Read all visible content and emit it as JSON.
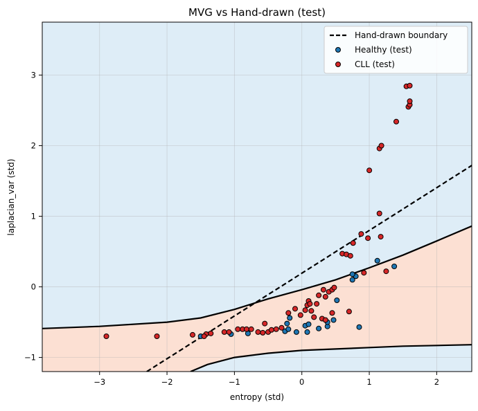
{
  "chart_data": {
    "type": "scatter",
    "title": "MVG vs Hand-drawn (test)",
    "xlabel": "entropy (std)",
    "ylabel": "laplacian_var (std)",
    "xlim": [
      -3.85,
      2.52
    ],
    "ylim": [
      -1.2,
      3.75
    ],
    "x_ticks": [
      -3,
      -2,
      -1,
      0,
      1,
      2
    ],
    "x_tick_labels": [
      "−3",
      "−2",
      "−1",
      "0",
      "1",
      "2"
    ],
    "y_ticks": [
      -1,
      0,
      1,
      2,
      3
    ],
    "y_tick_labels": [
      "−1",
      "0",
      "1",
      "2",
      "3"
    ],
    "grid": true,
    "legend_position": "top-right",
    "legend": [
      {
        "label": "Hand-drawn boundary",
        "marker": "dashed-line"
      },
      {
        "label": "Healthy (test)",
        "marker": "circle"
      },
      {
        "label": "CLL (test)",
        "marker": "circle"
      }
    ],
    "colors": {
      "healthy_region": "#deedf7",
      "cll_region": "#fce0d3",
      "healthy_points": "#1f77b4",
      "cll_points": "#d62728",
      "boundary": "#000000"
    },
    "hand_drawn_boundary": {
      "style": "dashed",
      "points": [
        [
          -2.3,
          -1.2
        ],
        [
          2.52,
          1.72
        ]
      ]
    },
    "mvg_boundary": {
      "style": "solid",
      "upper": [
        [
          -3.85,
          -0.59
        ],
        [
          -3.0,
          -0.56
        ],
        [
          -2.0,
          -0.5
        ],
        [
          -1.5,
          -0.44
        ],
        [
          -1.0,
          -0.32
        ],
        [
          -0.5,
          -0.17
        ],
        [
          0.0,
          -0.04
        ],
        [
          0.5,
          0.1
        ],
        [
          1.0,
          0.27
        ],
        [
          1.5,
          0.45
        ],
        [
          2.0,
          0.65
        ],
        [
          2.52,
          0.86
        ]
      ],
      "lower": [
        [
          -1.65,
          -1.2
        ],
        [
          -1.4,
          -1.1
        ],
        [
          -1.0,
          -1.0
        ],
        [
          -0.5,
          -0.94
        ],
        [
          0.0,
          -0.9
        ],
        [
          0.5,
          -0.88
        ],
        [
          1.0,
          -0.86
        ],
        [
          1.5,
          -0.84
        ],
        [
          2.0,
          -0.83
        ],
        [
          2.52,
          -0.82
        ]
      ]
    },
    "series": [
      {
        "name": "Healthy (test)",
        "points": [
          [
            -1.5,
            -0.7
          ],
          [
            -1.05,
            -0.67
          ],
          [
            -0.8,
            -0.66
          ],
          [
            -0.25,
            -0.63
          ],
          [
            -0.2,
            -0.6
          ],
          [
            -0.22,
            -0.52
          ],
          [
            -0.18,
            -0.44
          ],
          [
            -0.08,
            -0.64
          ],
          [
            0.05,
            -0.55
          ],
          [
            0.08,
            -0.64
          ],
          [
            0.1,
            -0.53
          ],
          [
            0.25,
            -0.59
          ],
          [
            0.38,
            -0.56
          ],
          [
            0.38,
            -0.5
          ],
          [
            0.47,
            -0.47
          ],
          [
            0.52,
            -0.19
          ],
          [
            0.75,
            0.1
          ],
          [
            0.8,
            0.15
          ],
          [
            0.75,
            0.18
          ],
          [
            0.85,
            -0.57
          ],
          [
            1.12,
            0.37
          ],
          [
            1.37,
            0.29
          ]
        ]
      },
      {
        "name": "CLL (test)",
        "points": [
          [
            -2.9,
            -0.7
          ],
          [
            -2.15,
            -0.7
          ],
          [
            -1.62,
            -0.68
          ],
          [
            -1.42,
            -0.67
          ],
          [
            -1.45,
            -0.7
          ],
          [
            -1.35,
            -0.66
          ],
          [
            -1.15,
            -0.64
          ],
          [
            -1.08,
            -0.64
          ],
          [
            -0.95,
            -0.6
          ],
          [
            -0.88,
            -0.6
          ],
          [
            -0.82,
            -0.6
          ],
          [
            -0.75,
            -0.6
          ],
          [
            -0.65,
            -0.64
          ],
          [
            -0.58,
            -0.65
          ],
          [
            -0.55,
            -0.52
          ],
          [
            -0.5,
            -0.64
          ],
          [
            -0.45,
            -0.61
          ],
          [
            -0.38,
            -0.6
          ],
          [
            -0.3,
            -0.58
          ],
          [
            -0.2,
            -0.37
          ],
          [
            -0.1,
            -0.31
          ],
          [
            -0.02,
            -0.4
          ],
          [
            0.05,
            -0.33
          ],
          [
            0.08,
            -0.26
          ],
          [
            0.1,
            -0.2
          ],
          [
            0.12,
            -0.24
          ],
          [
            0.14,
            -0.34
          ],
          [
            0.18,
            -0.43
          ],
          [
            0.22,
            -0.24
          ],
          [
            0.25,
            -0.12
          ],
          [
            0.3,
            -0.45
          ],
          [
            0.32,
            -0.04
          ],
          [
            0.35,
            -0.47
          ],
          [
            0.35,
            -0.14
          ],
          [
            0.4,
            -0.07
          ],
          [
            0.45,
            -0.04
          ],
          [
            0.48,
            -0.01
          ],
          [
            0.45,
            -0.37
          ],
          [
            0.6,
            0.47
          ],
          [
            0.66,
            0.46
          ],
          [
            0.7,
            -0.35
          ],
          [
            0.72,
            0.44
          ],
          [
            0.76,
            0.62
          ],
          [
            0.88,
            0.75
          ],
          [
            0.92,
            0.2
          ],
          [
            0.98,
            0.69
          ],
          [
            1.0,
            1.65
          ],
          [
            1.15,
            1.96
          ],
          [
            1.18,
            2.0
          ],
          [
            1.15,
            1.04
          ],
          [
            1.17,
            0.71
          ],
          [
            1.25,
            0.22
          ],
          [
            1.4,
            2.34
          ],
          [
            1.55,
            2.84
          ],
          [
            1.6,
            2.85
          ],
          [
            1.58,
            2.55
          ],
          [
            1.6,
            2.58
          ],
          [
            1.6,
            2.63
          ]
        ]
      }
    ]
  }
}
